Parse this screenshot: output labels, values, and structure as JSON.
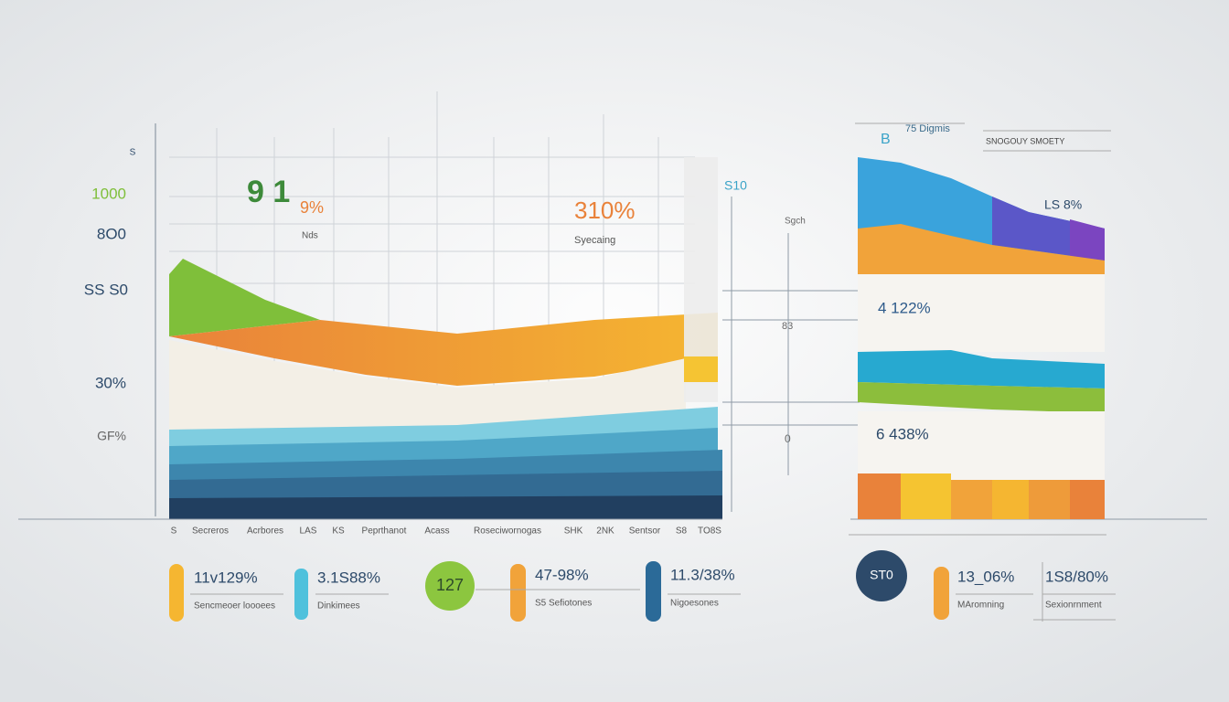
{
  "axis_labels": [
    "S",
    "1000",
    "8O0",
    "SS S0",
    "30%",
    "GF%"
  ],
  "annotations": {
    "big_value": "9 1",
    "big_pct": "9%",
    "big_caption": "Nds",
    "mid_value": "310%",
    "mid_caption": "Syecaing",
    "side_value": "S10",
    "side_caption": "Sgch",
    "side_tick": "83",
    "side_zero": "0"
  },
  "right_panel": {
    "letter": "B",
    "top_note": "75 Digmis",
    "header": "SNOGOUY SMOETY",
    "ls": "LS 8%",
    "value_1": "4 122%",
    "value_2": "6 438%"
  },
  "x_labels": [
    "S",
    "Secreros",
    "Acrbores",
    "LAS",
    "KS",
    "Peprthanot",
    "Acass",
    "Roseciwornogas",
    "SHK",
    "2NK",
    "Sentsor",
    "S8",
    "TO8S"
  ],
  "stats": [
    {
      "value": "11v129%",
      "label": "Sencmeoer loooees"
    },
    {
      "value": "3.1S88%",
      "label": "Dinkimees"
    },
    {
      "value": "47-98%",
      "label": "S5 Sefiotones"
    },
    {
      "value": "11.3/38%",
      "label": "Nigoesones"
    },
    {
      "value": "13_06%",
      "label": "MAromning"
    },
    {
      "value": "1S8/80%",
      "label": "Sexionrnment"
    }
  ],
  "badges": [
    "127",
    "ST0"
  ]
}
